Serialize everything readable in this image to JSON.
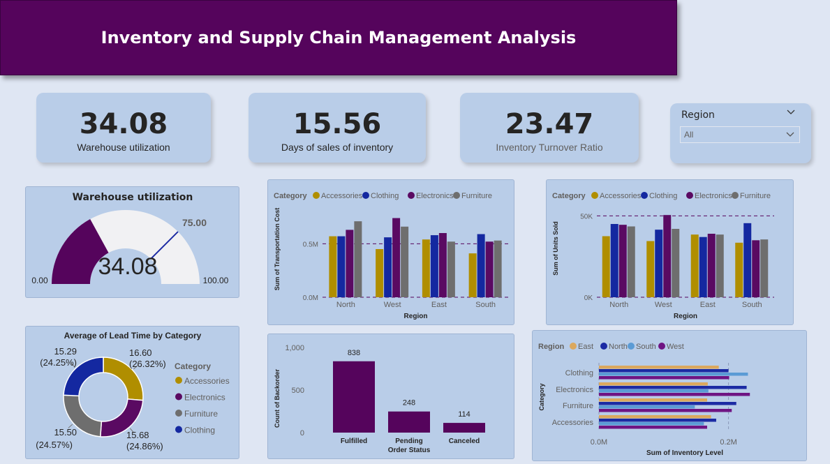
{
  "header": {
    "title": "Inventory and Supply Chain Management Analysis"
  },
  "kpis": [
    {
      "value": "34.08",
      "label": "Warehouse utilization"
    },
    {
      "value": "15.56",
      "label": "Days of sales of inventory"
    },
    {
      "value": "23.47",
      "label": "Inventory Turnover Ratio"
    }
  ],
  "slicer": {
    "title": "Region",
    "selected": "All",
    "icon": "chevron-down-icon"
  },
  "colors": {
    "purple": "#55045c",
    "accessories": "#b08e00",
    "clothing": "#1428a0",
    "electronics": "#5a0a62",
    "furniture": "#6e6e6e",
    "east": "#dba85e",
    "north": "#1b2aa3",
    "south": "#5b9bd5",
    "west": "#6f1483",
    "gauge_bg": "#f1f1f3"
  },
  "gauge": {
    "title": "Warehouse utilization",
    "value": 34.08,
    "value_label": "34.08",
    "min_label": "0.00",
    "max_label": "100.00",
    "target_label": "75.00",
    "min": 0,
    "max": 100,
    "target": 75
  },
  "chart_data": [
    {
      "id": "lead_time",
      "type": "pie",
      "title": "Average of Lead Time by Category",
      "legend_title": "Category",
      "legend_position": "right",
      "categories": [
        "Accessories",
        "Electronics",
        "Furniture",
        "Clothing"
      ],
      "values": [
        16.6,
        15.68,
        15.5,
        15.29
      ],
      "value_labels": [
        "16.60",
        "15.68",
        "15.50",
        "15.29"
      ],
      "percent_labels": [
        "(26.32%)",
        "(24.86%)",
        "(24.57%)",
        "(24.25%)"
      ]
    },
    {
      "id": "transport_cost",
      "type": "bar",
      "legend_title": "Category",
      "legend_position": "top-left",
      "series_names": [
        "Accessories",
        "Clothing",
        "Electronics",
        "Furniture"
      ],
      "categories": [
        "North",
        "West",
        "East",
        "South"
      ],
      "xlabel": "Region",
      "ylabel": "Sum of Transportation Cost",
      "ylim": [
        0,
        0.9
      ],
      "yticks": [
        0,
        0.5
      ],
      "ytick_labels": [
        "0.0M",
        "0.5M"
      ],
      "series": [
        {
          "name": "Accessories",
          "values": [
            0.57,
            0.45,
            0.54,
            0.41
          ]
        },
        {
          "name": "Clothing",
          "values": [
            0.57,
            0.56,
            0.58,
            0.59
          ]
        },
        {
          "name": "Electronics",
          "values": [
            0.63,
            0.74,
            0.6,
            0.52
          ]
        },
        {
          "name": "Furniture",
          "values": [
            0.71,
            0.66,
            0.52,
            0.53
          ]
        }
      ]
    },
    {
      "id": "units_sold",
      "type": "bar",
      "legend_title": "Category",
      "legend_position": "top-left",
      "series_names": [
        "Accessories",
        "Clothing",
        "Electronics",
        "Furniture"
      ],
      "categories": [
        "North",
        "West",
        "East",
        "South"
      ],
      "xlabel": "Region",
      "ylabel": "Sum of Units Sold",
      "ylim": [
        0,
        60000
      ],
      "yticks": [
        0,
        50000
      ],
      "ytick_labels": [
        "0K",
        "50K"
      ],
      "series": [
        {
          "name": "Accessories",
          "values": [
            37500,
            34500,
            38500,
            33500
          ]
        },
        {
          "name": "Clothing",
          "values": [
            45000,
            41500,
            37000,
            45500
          ]
        },
        {
          "name": "Electronics",
          "values": [
            44500,
            50500,
            39000,
            35000
          ]
        },
        {
          "name": "Furniture",
          "values": [
            43500,
            42000,
            38500,
            35500
          ]
        }
      ]
    },
    {
      "id": "backorder",
      "type": "bar",
      "categories": [
        "Fulfilled",
        "Pending",
        "Canceled"
      ],
      "values": [
        838,
        248,
        114
      ],
      "value_labels": [
        "838",
        "248",
        "114"
      ],
      "xlabel": "Order Status",
      "ylabel": "Count of Backorder",
      "ylim": [
        0,
        1000
      ],
      "yticks": [
        0,
        500,
        1000
      ],
      "ytick_labels": [
        "0",
        "500",
        "1,000"
      ]
    },
    {
      "id": "inventory_level",
      "type": "bar",
      "orientation": "horizontal",
      "legend_title": "Region",
      "legend_position": "top-left",
      "series_names": [
        "East",
        "North",
        "South",
        "West"
      ],
      "categories": [
        "Clothing",
        "Electronics",
        "Furniture",
        "Accessories"
      ],
      "xlabel": "Sum of Inventory Level",
      "ylabel": "Category",
      "xlim": [
        0,
        0.25
      ],
      "xticks": [
        0,
        0.2
      ],
      "xtick_labels": [
        "0.0M",
        "0.2M"
      ],
      "series": [
        {
          "name": "East",
          "values": [
            0.185,
            0.168,
            0.167,
            0.173
          ]
        },
        {
          "name": "North",
          "values": [
            0.2,
            0.228,
            0.212,
            0.181
          ]
        },
        {
          "name": "South",
          "values": [
            0.23,
            0.169,
            0.148,
            0.162
          ]
        },
        {
          "name": "West",
          "values": [
            0.201,
            0.233,
            0.205,
            0.167
          ]
        }
      ]
    }
  ]
}
